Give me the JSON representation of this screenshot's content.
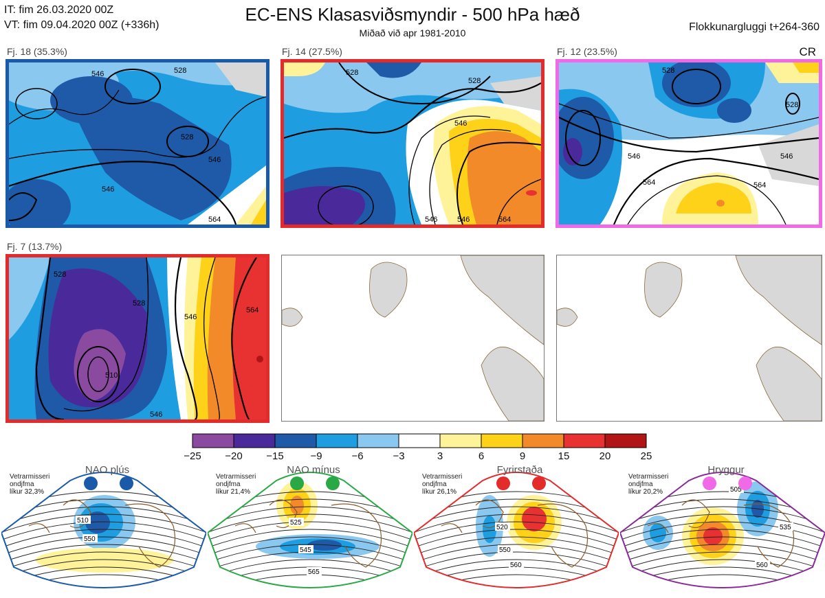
{
  "header": {
    "init_time": "IT: fim 26.03.2020 00Z",
    "valid_time": "VT: fim 09.04.2020 00Z  (+336h)",
    "title": "EC-ENS Klasasviðsmyndir - 500 hPa hæð",
    "subtitle": "Miðað við apr 1981-2010",
    "window": "Flokkunargluggi t+264-360"
  },
  "colors": {
    "land": "#d8d8d8",
    "coast": "#8a6a3a",
    "border_blue": "#1a5aa8",
    "border_red": "#e32b2b",
    "border_magenta": "#f06ae8",
    "border_green": "#2aa845",
    "border_purple": "#8a2a9a"
  },
  "clusters": [
    {
      "label": "Fj. 18 (35.3%)",
      "border": "#1a5aa8",
      "regime": "",
      "contours": [
        "546",
        "528",
        "528",
        "546",
        "546",
        "564"
      ]
    },
    {
      "label": "Fj. 14 (27.5%)",
      "border": "#e32b2b",
      "regime": "",
      "contours": [
        "528",
        "528",
        "546",
        "546",
        "564",
        "546"
      ]
    },
    {
      "label": "Fj. 12 (23.5%)",
      "border": "#f06ae8",
      "regime": "CR",
      "contours": [
        "528",
        "546",
        "546",
        "564",
        "564",
        "528"
      ]
    },
    {
      "label": "Fj. 7 (13.7%)",
      "border": "#e32b2b",
      "regime": "",
      "contours": [
        "528",
        "528",
        "510",
        "546",
        "564",
        "546"
      ]
    }
  ],
  "colorbar": {
    "ticks": [
      "−25",
      "−20",
      "−15",
      "−9",
      "−6",
      "−3",
      "3",
      "6",
      "9",
      "15",
      "20",
      "25"
    ],
    "colors": [
      "#8a4aa0",
      "#4a2a9a",
      "#1f5aa8",
      "#1e9ee0",
      "#8ac8f0",
      "#ffffff",
      "#fff39a",
      "#ffd21a",
      "#f28a2a",
      "#e83232",
      "#b01414"
    ]
  },
  "regimes": [
    {
      "name": "NAO plús",
      "note": "Vetrarmisseri ondjfma",
      "likelihood": "líkur 32,3%",
      "dot_color": "#1a5aa8",
      "border": "#1a5aa8",
      "labels": [
        "510",
        "550"
      ]
    },
    {
      "name": "NAO mínus",
      "note": "Vetrarmisseri ondjfma",
      "likelihood": "líkur 21,4%",
      "dot_color": "#2aa845",
      "border": "#2aa845",
      "labels": [
        "525",
        "545",
        "565"
      ]
    },
    {
      "name": "Fyrirstaða",
      "note": "Vetrarmisseri ondjfma",
      "likelihood": "líkur 26,1%",
      "dot_color": "#e32b2b",
      "border": "#e32b2b",
      "labels": [
        "520",
        "550",
        "560"
      ]
    },
    {
      "name": "Hryggur",
      "note": "Vetrarmisseri ondjfma",
      "likelihood": "líkur 20,2%",
      "dot_color": "#f06ae8",
      "border": "#8a2a9a",
      "labels": [
        "505",
        "535",
        "560"
      ]
    }
  ]
}
